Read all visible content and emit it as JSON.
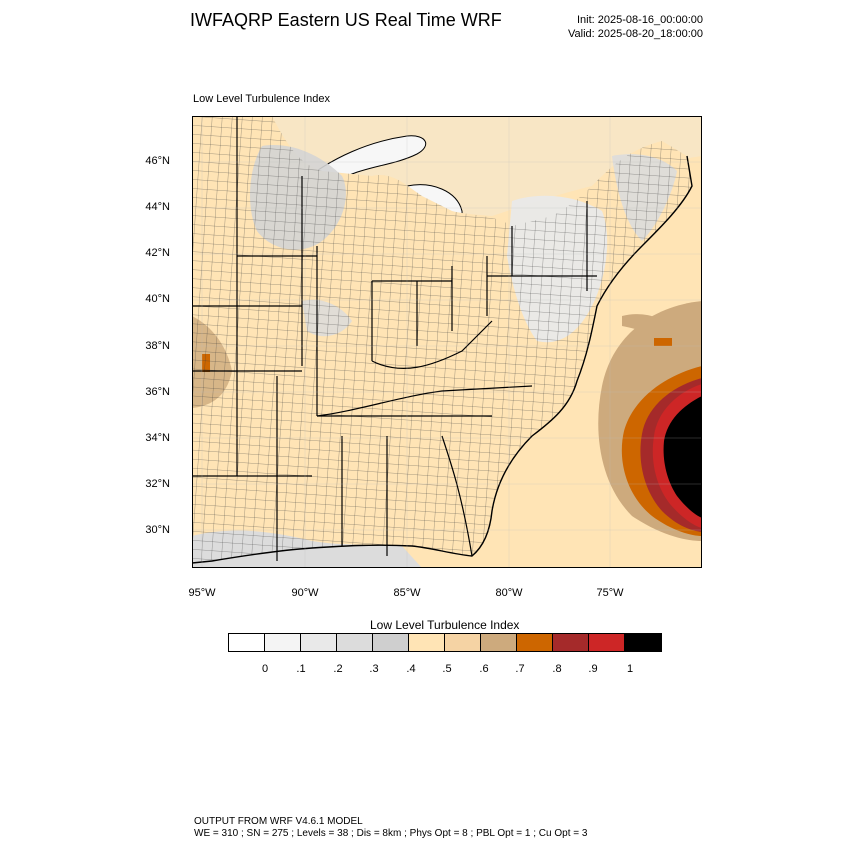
{
  "header": {
    "title": "IWFAQRP Eastern US Real Time WRF",
    "init": "Init: 2025-08-16_00:00:00",
    "valid": "Valid: 2025-08-20_18:00:00"
  },
  "map": {
    "subtitle": "Low Level Turbulence Index",
    "lat_labels": [
      "46°N",
      "44°N",
      "42°N",
      "40°N",
      "38°N",
      "36°N",
      "34°N",
      "32°N",
      "30°N"
    ],
    "lon_labels": [
      "95°W",
      "90°W",
      "85°W",
      "80°W",
      "75°W"
    ]
  },
  "legend": {
    "title": "Low Level Turbulence Index",
    "colors": [
      "#ffffff",
      "#f4f4f4",
      "#e9e9e9",
      "#dcdcdc",
      "#cfcfcf",
      "#ffe4b5",
      "#f5d3a4",
      "#cdaa7d",
      "#cd6600",
      "#a52a2a",
      "#cd2626",
      "#000000"
    ],
    "ticks": [
      "0",
      ".1",
      ".2",
      ".3",
      ".4",
      ".5",
      ".6",
      ".7",
      ".8",
      ".9",
      "1"
    ]
  },
  "footer": {
    "line1": "OUTPUT FROM WRF V4.6.1 MODEL",
    "line2": "WE = 310 ; SN = 275 ; Levels = 38 ; Dis = 8km ; Phys Opt = 8 ; PBL Opt = 1 ; Cu Opt = 3"
  }
}
